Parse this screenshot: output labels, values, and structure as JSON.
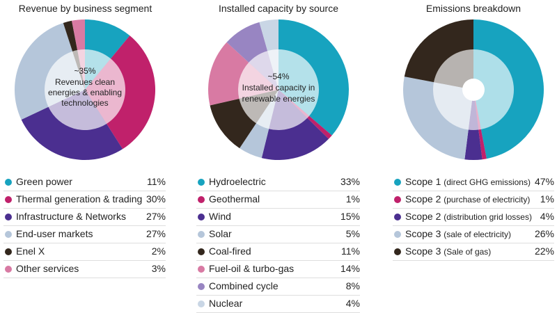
{
  "chart_data": [
    {
      "type": "pie",
      "title": "Revenue by business segment",
      "center_value": "~35%",
      "center_text": [
        "Revenues clean",
        "energies & enabling",
        "technologies"
      ],
      "slices": [
        {
          "label": "Green power",
          "value": 11,
          "pct_label": "11%",
          "color": "#17a3bf"
        },
        {
          "label": "Thermal generation & trading",
          "value": 30,
          "pct_label": "30%",
          "color": "#c0216b"
        },
        {
          "label": "Infrastructure & Networks",
          "value": 27,
          "pct_label": "27%",
          "color": "#4b2f90"
        },
        {
          "label": "End-user markets",
          "value": 27,
          "pct_label": "27%",
          "color": "#b5c6da"
        },
        {
          "label": "Enel X",
          "value": 2,
          "pct_label": "2%",
          "color": "#33271d"
        },
        {
          "label": "Other services",
          "value": 3,
          "pct_label": "3%",
          "color": "#d87aa3"
        }
      ]
    },
    {
      "type": "pie",
      "title": "Installed capacity by source",
      "center_value": "~54%",
      "center_text": [
        "Installed capacity in",
        "renewable energies"
      ],
      "slices": [
        {
          "label": "Hydroelectric",
          "value": 33,
          "pct_label": "33%",
          "color": "#17a3bf"
        },
        {
          "label": "Geothermal",
          "value": 1,
          "pct_label": "1%",
          "color": "#c0216b"
        },
        {
          "label": "Wind",
          "value": 15,
          "pct_label": "15%",
          "color": "#4b2f90"
        },
        {
          "label": "Solar",
          "value": 5,
          "pct_label": "5%",
          "color": "#b5c6da"
        },
        {
          "label": "Coal-fired",
          "value": 11,
          "pct_label": "11%",
          "color": "#33271d"
        },
        {
          "label": "Fuel-oil & turbo-gas",
          "value": 14,
          "pct_label": "14%",
          "color": "#d87aa3"
        },
        {
          "label": "Combined cycle",
          "value": 8,
          "pct_label": "8%",
          "color": "#9885c2"
        },
        {
          "label": "Nuclear",
          "value": 4,
          "pct_label": "4%",
          "color": "#c9d6e5"
        }
      ]
    },
    {
      "type": "pie",
      "title": "Emissions breakdown",
      "slices": [
        {
          "label": "Scope 1",
          "note": "(direct GHG emissions)",
          "value": 47,
          "pct_label": "47%",
          "color": "#17a3bf"
        },
        {
          "label": "Scope 2",
          "note": "(purchase of electricity)",
          "value": 1,
          "pct_label": "1%",
          "color": "#c0216b"
        },
        {
          "label": "Scope 2",
          "note": "(distribution grid losses)",
          "value": 4,
          "pct_label": "4%",
          "color": "#4b2f90"
        },
        {
          "label": "Scope 3",
          "note": "(sale of electricity)",
          "value": 26,
          "pct_label": "26%",
          "color": "#b5c6da"
        },
        {
          "label": "Scope 3",
          "note": "(Sale of gas)",
          "value": 22,
          "pct_label": "22%",
          "color": "#33271d"
        }
      ]
    }
  ]
}
